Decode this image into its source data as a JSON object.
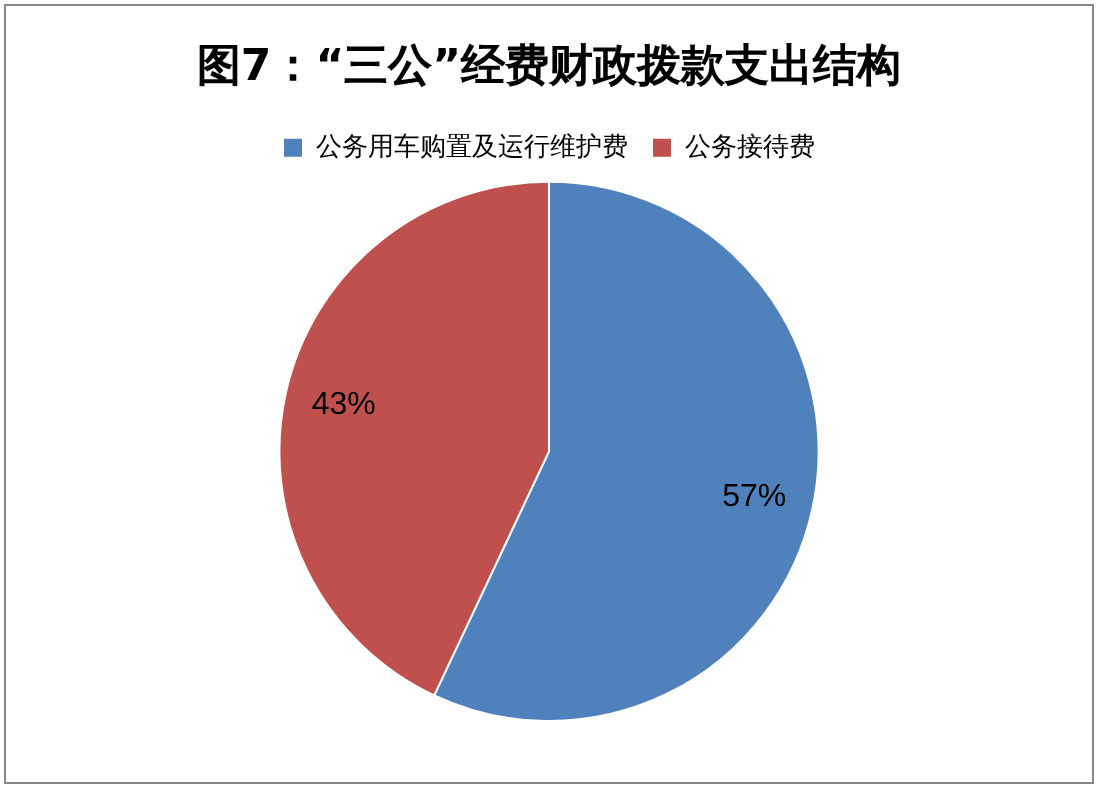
{
  "chart_data": {
    "type": "pie",
    "title": "图7：“三公”经费财政拨款支出结构",
    "categories": [
      "公务用车购置及运行维护费",
      "公务接待费"
    ],
    "values": [
      57,
      43
    ],
    "colors": [
      "#4f81bd",
      "#c0504d"
    ],
    "value_labels": [
      "57%",
      "43%"
    ],
    "legend": "top"
  }
}
